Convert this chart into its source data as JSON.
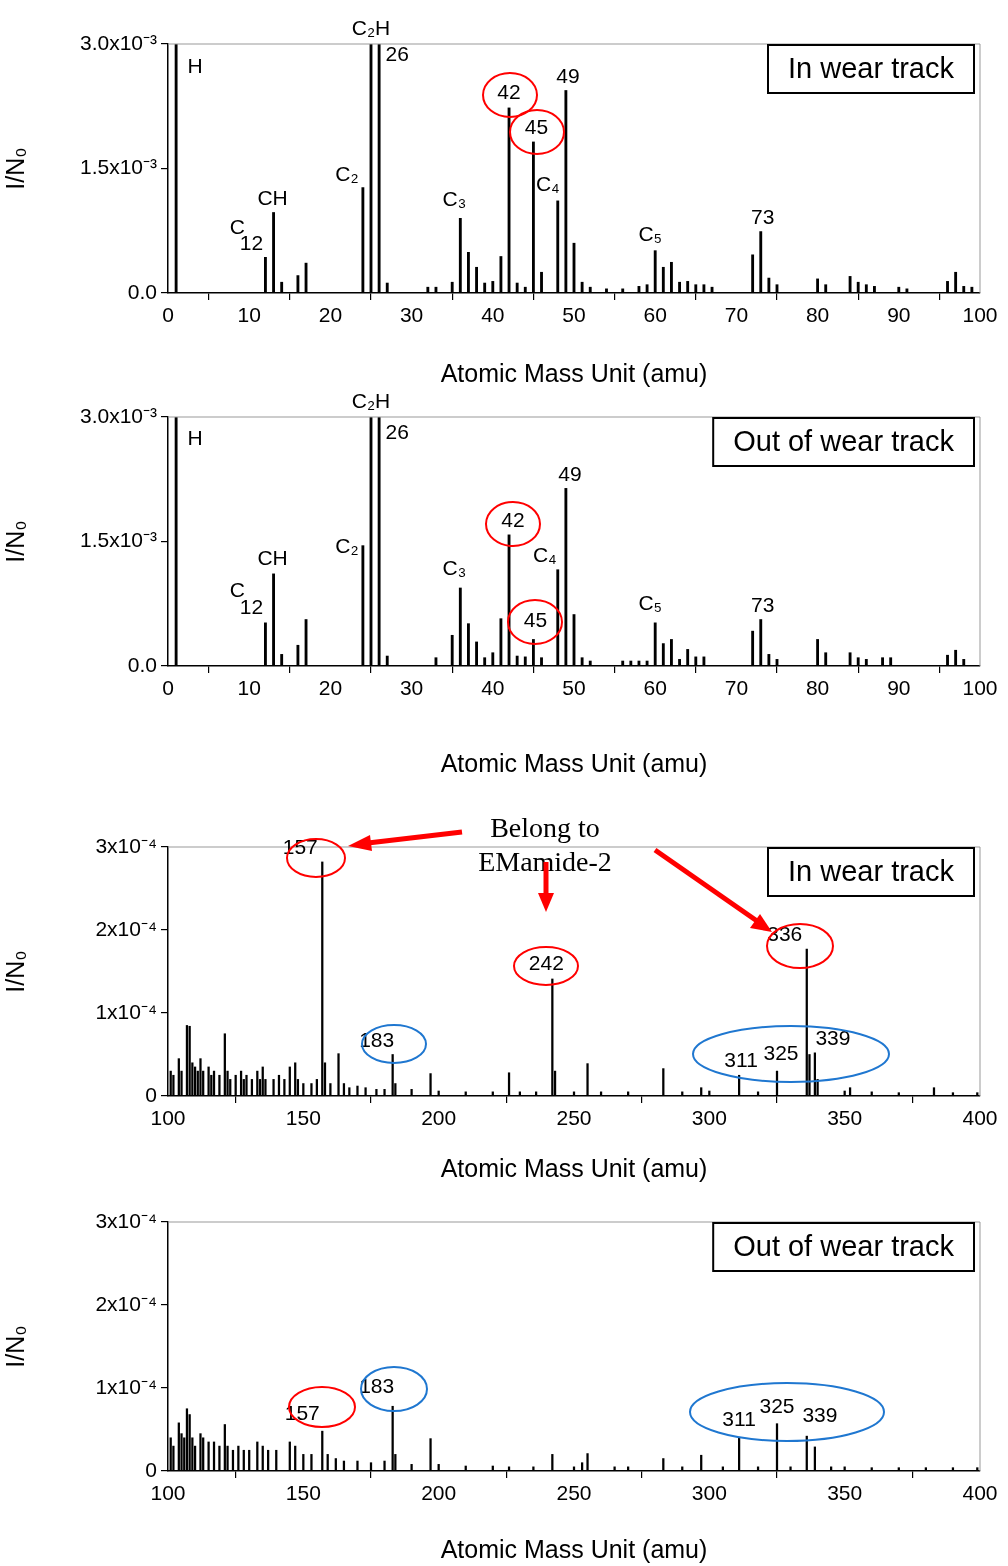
{
  "chart_data": [
    {
      "type": "bar",
      "color": "#000000",
      "xlabel": "Atomic Mass Unit (amu)",
      "ylabel": "I/N₀",
      "x": [
        1,
        12,
        13,
        14,
        16,
        17,
        24,
        25,
        26,
        27,
        32,
        33,
        35,
        36,
        37,
        38,
        39,
        40,
        41,
        42,
        43,
        44,
        45,
        46,
        48,
        49,
        50,
        51,
        52,
        54,
        56,
        58,
        59,
        60,
        61,
        62,
        63,
        64,
        65,
        66,
        67,
        72,
        73,
        74,
        75,
        80,
        81,
        84,
        85,
        86,
        87,
        90,
        91,
        96,
        97,
        98,
        99
      ],
      "values": [
        0.003,
        0.00043,
        0.00097,
        0.00013,
        0.00021,
        0.00036,
        0.00127,
        0.003,
        0.003,
        0.00012,
        7e-05,
        7e-05,
        0.00013,
        0.0009,
        0.00049,
        0.00031,
        0.00012,
        0.00014,
        0.00044,
        0.00223,
        0.00012,
        7e-05,
        0.00182,
        0.00025,
        0.00111,
        0.00244,
        0.0006,
        0.00013,
        7e-05,
        5e-05,
        5e-05,
        8e-05,
        0.0001,
        0.00051,
        0.00031,
        0.00037,
        0.00013,
        0.00014,
        0.0001,
        0.0001,
        7e-05,
        0.00046,
        0.00074,
        0.00018,
        0.0001,
        0.00017,
        0.0001,
        0.0002,
        0.00013,
        0.0001,
        8e-05,
        7e-05,
        5e-05,
        0.00014,
        0.00025,
        8e-05,
        7e-05
      ],
      "xlim": [
        0,
        100
      ],
      "xticks": [
        0,
        10,
        20,
        30,
        40,
        50,
        60,
        70,
        80,
        90,
        100
      ],
      "ylim": [
        0,
        0.003
      ],
      "yticks": [
        {
          "value": 0,
          "label": "0.0"
        },
        {
          "value": 0.0015,
          "label": "1.5x10⁻³"
        },
        {
          "value": 0.003,
          "label": "3.0x10⁻³"
        }
      ],
      "annotations": [
        "In wear track",
        {
          "text": "H",
          "x": 1,
          "y": 0.003
        },
        {
          "text": "C",
          "x": 12,
          "y": 0.00043
        },
        {
          "text": "12",
          "x": 12,
          "y": 0.00043
        },
        {
          "text": "CH",
          "x": 13,
          "y": 0.00097
        },
        {
          "text": "C₂",
          "x": 24,
          "y": 0.00127
        },
        {
          "text": "C₂H",
          "x": 25,
          "y": 0.003
        },
        {
          "text": "26",
          "x": 26,
          "y": 0.003
        },
        {
          "text": "C₃",
          "x": 36,
          "y": 0.0009
        },
        {
          "text": "42",
          "x": 42,
          "y": 0.00223
        },
        {
          "text": "45",
          "x": 45,
          "y": 0.00182
        },
        {
          "text": "C₄",
          "x": 48,
          "y": 0.00111
        },
        {
          "text": "49",
          "x": 49,
          "y": 0.00244
        },
        {
          "text": "C₅",
          "x": 60,
          "y": 0.00051
        },
        {
          "text": "73",
          "x": 73,
          "y": 0.00074
        }
      ]
    },
    {
      "type": "bar",
      "color": "#000000",
      "xlabel": "Atomic Mass Unit (amu)",
      "ylabel": "I/N₀",
      "x": [
        1,
        12,
        13,
        14,
        16,
        17,
        24,
        25,
        26,
        27,
        33,
        35,
        36,
        37,
        38,
        39,
        40,
        41,
        42,
        43,
        44,
        45,
        46,
        48,
        49,
        50,
        51,
        52,
        56,
        57,
        58,
        59,
        60,
        61,
        62,
        63,
        64,
        65,
        66,
        72,
        73,
        74,
        75,
        80,
        81,
        84,
        85,
        86,
        88,
        89,
        96,
        97,
        98
      ],
      "values": [
        0.003,
        0.00052,
        0.00111,
        0.00014,
        0.00025,
        0.00056,
        0.00145,
        0.003,
        0.003,
        0.00012,
        0.0001,
        0.00037,
        0.00094,
        0.00051,
        0.00029,
        0.0001,
        0.00016,
        0.00057,
        0.00158,
        0.00012,
        0.00011,
        0.00032,
        0.0001,
        0.00116,
        0.00214,
        0.00062,
        0.0001,
        6e-05,
        6e-05,
        6e-05,
        6e-05,
        6e-05,
        0.00052,
        0.00027,
        0.00032,
        8e-05,
        0.0002,
        0.00011,
        0.00011,
        0.00042,
        0.00056,
        0.00014,
        8e-05,
        0.00032,
        0.00016,
        0.00016,
        0.0001,
        8e-05,
        0.0001,
        0.0001,
        0.00013,
        0.00019,
        8e-05
      ],
      "xlim": [
        0,
        100
      ],
      "xticks": [
        0,
        10,
        20,
        30,
        40,
        50,
        60,
        70,
        80,
        90,
        100
      ],
      "ylim": [
        0,
        0.003
      ],
      "yticks": [
        {
          "value": 0,
          "label": "0.0"
        },
        {
          "value": 0.0015,
          "label": "1.5x10⁻³"
        },
        {
          "value": 0.003,
          "label": "3.0x10⁻³"
        }
      ],
      "annotations": [
        "Out of wear track",
        {
          "text": "H",
          "x": 1,
          "y": 0.003
        },
        {
          "text": "C",
          "x": 12,
          "y": 0.00052
        },
        {
          "text": "12",
          "x": 12,
          "y": 0.00052
        },
        {
          "text": "CH",
          "x": 13,
          "y": 0.00111
        },
        {
          "text": "C₂",
          "x": 24,
          "y": 0.00145
        },
        {
          "text": "C₂H",
          "x": 25,
          "y": 0.003
        },
        {
          "text": "26",
          "x": 26,
          "y": 0.003
        },
        {
          "text": "C₃",
          "x": 36,
          "y": 0.00094
        },
        {
          "text": "42",
          "x": 42,
          "y": 0.00158
        },
        {
          "text": "45",
          "x": 45,
          "y": 0.00032
        },
        {
          "text": "C₄",
          "x": 48,
          "y": 0.00116
        },
        {
          "text": "49",
          "x": 49,
          "y": 0.00214
        },
        {
          "text": "C₅",
          "x": 60,
          "y": 0.00052
        },
        {
          "text": "73",
          "x": 73,
          "y": 0.00056
        }
      ]
    },
    {
      "type": "bar",
      "color": "#000000",
      "xlabel": "Atomic Mass Unit (amu)",
      "ylabel": "I/N₀",
      "x": [
        101,
        102,
        104,
        105,
        107,
        108,
        109,
        110,
        111,
        112,
        113,
        115,
        116,
        117,
        119,
        121,
        122,
        123,
        125,
        127,
        128,
        129,
        131,
        133,
        134,
        135,
        136,
        139,
        141,
        143,
        145,
        147,
        148,
        150,
        153,
        155,
        157,
        158,
        160,
        163,
        165,
        167,
        170,
        173,
        177,
        180,
        183,
        184,
        190,
        197,
        200,
        210,
        220,
        226,
        230,
        236,
        242,
        243,
        250,
        255,
        260,
        270,
        283,
        290,
        297,
        300,
        311,
        318,
        325,
        336,
        337,
        339,
        340,
        350,
        352,
        360,
        370,
        383,
        390,
        399
      ],
      "values": [
        3e-05,
        2.5e-05,
        4.5e-05,
        3e-05,
        8.5e-05,
        8.4e-05,
        4e-05,
        3.5e-05,
        3e-05,
        4.5e-05,
        3e-05,
        3.5e-05,
        2.5e-05,
        3e-05,
        2.5e-05,
        7.5e-05,
        3e-05,
        2e-05,
        2.5e-05,
        3e-05,
        2e-05,
        2.5e-05,
        2e-05,
        3e-05,
        2e-05,
        3.5e-05,
        2e-05,
        2e-05,
        2.5e-05,
        2e-05,
        3.5e-05,
        4e-05,
        2e-05,
        1.5e-05,
        1.5e-05,
        2e-05,
        0.000282,
        4e-05,
        1.5e-05,
        5.1e-05,
        1.5e-05,
        1e-05,
        1.2e-05,
        1e-05,
        8e-06,
        8e-06,
        5e-05,
        1.5e-05,
        8e-06,
        2.7e-05,
        6e-06,
        5e-06,
        5e-06,
        2.8e-05,
        5e-06,
        5e-06,
        0.000141,
        3e-05,
        5e-06,
        3.9e-05,
        5e-06,
        5e-06,
        3.3e-05,
        5e-06,
        1e-05,
        6e-06,
        2.5e-05,
        5e-06,
        3e-05,
        0.000177,
        5e-05,
        5.2e-05,
        2e-05,
        6e-06,
        1e-05,
        5e-06,
        4e-06,
        1e-05,
        4e-06,
        4e-06
      ],
      "xlim": [
        100,
        400
      ],
      "xticks": [
        100,
        150,
        200,
        250,
        300,
        350,
        400
      ],
      "ylim": [
        0,
        0.0003
      ],
      "yticks": [
        0,
        {
          "value": 0.0001,
          "label": "1x10⁻⁴"
        },
        {
          "value": 0.0002,
          "label": "2x10⁻⁴"
        },
        {
          "value": 0.0003,
          "label": "3x10⁻⁴"
        }
      ],
      "annotations": [
        "In wear track",
        "Belong to\nEMamide-2",
        {
          "text": "157",
          "x": 157,
          "y": 0.000282
        },
        {
          "text": "183",
          "x": 183,
          "y": 5e-05
        },
        {
          "text": "242",
          "x": 242,
          "y": 0.000141
        },
        {
          "text": "336",
          "x": 336,
          "y": 0.000177
        },
        {
          "text": "311",
          "x": 311,
          "y": 2.5e-05
        },
        {
          "text": "325",
          "x": 325,
          "y": 3e-05
        },
        {
          "text": "339",
          "x": 339,
          "y": 5.2e-05
        }
      ]
    },
    {
      "type": "bar",
      "color": "#000000",
      "xlabel": "Atomic Mass Unit (amu)",
      "ylabel": "I/N₀",
      "x": [
        101,
        102,
        104,
        105,
        106,
        107,
        108,
        109,
        110,
        112,
        113,
        115,
        117,
        119,
        121,
        122,
        124,
        126,
        128,
        130,
        133,
        135,
        137,
        140,
        145,
        147,
        150,
        153,
        157,
        159,
        162,
        165,
        170,
        175,
        180,
        183,
        184,
        190,
        197,
        200,
        210,
        220,
        226,
        235,
        242,
        250,
        253,
        255,
        265,
        270,
        283,
        290,
        297,
        305,
        311,
        318,
        325,
        330,
        336,
        339,
        345,
        350,
        360,
        370,
        380,
        390,
        399
      ],
      "values": [
        4e-05,
        3e-05,
        5.8e-05,
        4.5e-05,
        4e-05,
        7.5e-05,
        6.8e-05,
        4e-05,
        3e-05,
        4.5e-05,
        4e-05,
        3.5e-05,
        3.5e-05,
        3e-05,
        5.6e-05,
        3e-05,
        2.5e-05,
        3e-05,
        2.5e-05,
        2.5e-05,
        3.5e-05,
        3e-05,
        2.5e-05,
        2.5e-05,
        3.5e-05,
        3e-05,
        2e-05,
        2e-05,
        4.8e-05,
        2e-05,
        1.5e-05,
        1.2e-05,
        1.2e-05,
        1e-05,
        1.2e-05,
        7.8e-05,
        2e-05,
        8e-06,
        3.9e-05,
        8e-06,
        6e-06,
        6e-06,
        5e-06,
        5e-06,
        2e-05,
        5e-06,
        1e-05,
        2.1e-05,
        5e-06,
        5e-06,
        1.5e-05,
        5e-06,
        1.9e-05,
        5e-06,
        4e-05,
        5e-06,
        5.7e-05,
        5e-06,
        4.2e-05,
        2.9e-05,
        5e-06,
        5e-06,
        4e-06,
        4e-06,
        4e-06,
        4e-06,
        4e-06
      ],
      "xlim": [
        100,
        400
      ],
      "xticks": [
        100,
        150,
        200,
        250,
        300,
        350,
        400
      ],
      "ylim": [
        0,
        0.0003
      ],
      "yticks": [
        0,
        {
          "value": 0.0001,
          "label": "1x10⁻⁴"
        },
        {
          "value": 0.0002,
          "label": "2x10⁻⁴"
        },
        {
          "value": 0.0003,
          "label": "3x10⁻⁴"
        }
      ],
      "annotations": [
        "Out of wear track",
        {
          "text": "157",
          "x": 157,
          "y": 4.8e-05
        },
        {
          "text": "183",
          "x": 183,
          "y": 7.8e-05
        },
        {
          "text": "311",
          "x": 311,
          "y": 4e-05
        },
        {
          "text": "325",
          "x": 325,
          "y": 5.7e-05
        },
        {
          "text": "339",
          "x": 339,
          "y": 2.9e-05
        }
      ]
    }
  ]
}
